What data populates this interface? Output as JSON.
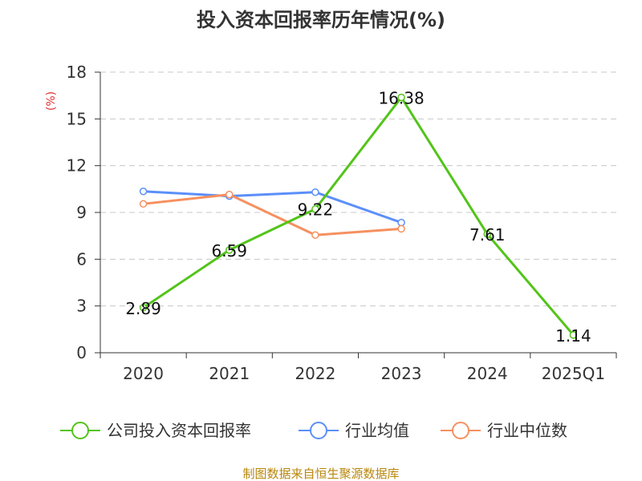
{
  "chart_data": {
    "type": "line",
    "title": "投入资本回报率历年情况(%)",
    "ylabel": "(%)",
    "xlabel": "",
    "categories": [
      "2020",
      "2021",
      "2022",
      "2023",
      "2024",
      "2025Q1"
    ],
    "ylim": [
      0,
      18
    ],
    "yticks": [
      "0",
      "3",
      "6",
      "9",
      "12",
      "15",
      "18"
    ],
    "grid": true,
    "legend_position": "bottom",
    "series": [
      {
        "name": "公司投入资本回报率",
        "color": "#52c41a",
        "values": [
          2.89,
          6.59,
          9.22,
          16.38,
          7.61,
          1.14
        ],
        "labels": [
          "2.89",
          "6.59",
          "9.22",
          "16.38",
          "7.61",
          "1.14"
        ]
      },
      {
        "name": "行业均值",
        "color": "#5b8ff9",
        "values": [
          10.35,
          10.05,
          10.3,
          8.35,
          null,
          null
        ]
      },
      {
        "name": "行业中位数",
        "color": "#f6905f",
        "values": [
          9.55,
          10.15,
          7.55,
          7.95,
          null,
          null
        ]
      }
    ]
  },
  "source_note": "制图数据来自恒生聚源数据库"
}
